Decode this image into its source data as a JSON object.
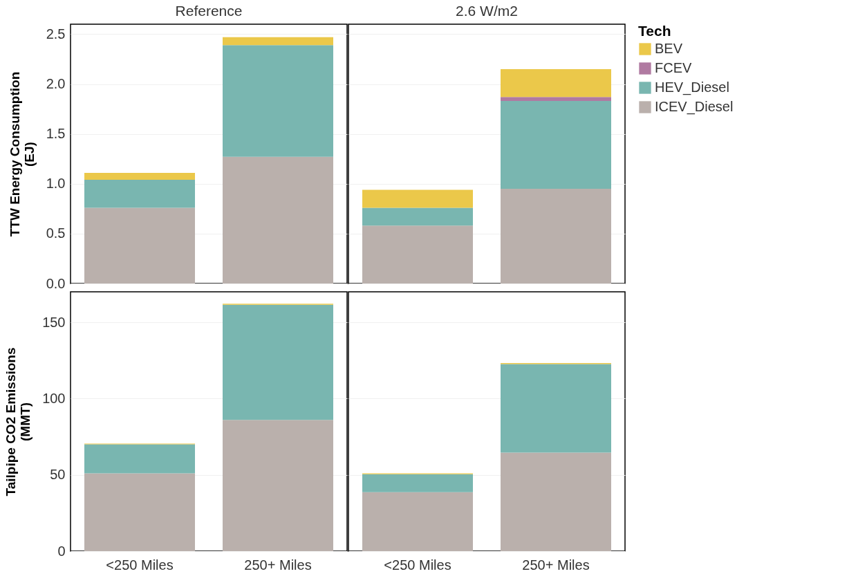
{
  "chart_data": [
    {
      "type": "bar",
      "stacked": true,
      "title": "Reference",
      "ylabel": "TTW Energy Consumption (EJ)",
      "categories": [
        "<250 Miles",
        "250+ Miles"
      ],
      "ylim": [
        0,
        2.6
      ],
      "yticks": [
        {
          "value": 0,
          "label": "0.0"
        },
        0.5,
        {
          "value": 1,
          "label": "1.0"
        },
        1.5,
        {
          "value": 2,
          "label": "2.0"
        },
        2.5
      ],
      "grid": "y",
      "tick_labels": "y",
      "legend": "right",
      "series": [
        {
          "name": "ICEV_Diesel",
          "color": "#bab0ac",
          "values": [
            0.76,
            1.27
          ]
        },
        {
          "name": "HEV_Diesel",
          "color": "#79b6b0",
          "values": [
            0.28,
            1.12
          ]
        },
        {
          "name": "BEV",
          "color": "#ebc84a",
          "values": [
            0.07,
            0.08
          ]
        }
      ]
    },
    {
      "type": "bar",
      "stacked": true,
      "title": "2.6 W/m2",
      "categories": [
        "<250 Miles",
        "250+ Miles"
      ],
      "ylim": [
        0,
        2.6
      ],
      "yticks": [
        0,
        0.5,
        1,
        1.5,
        2,
        2.5
      ],
      "grid": "y",
      "tick_labels": false,
      "legend": "right",
      "legend_title": "Tech",
      "series": [
        {
          "name": "ICEV_Diesel",
          "color": "#bab0ac",
          "values": [
            0.58,
            0.95
          ]
        },
        {
          "name": "HEV_Diesel",
          "color": "#79b6b0",
          "values": [
            0.18,
            0.88
          ]
        },
        {
          "name": "FCEV",
          "color": "#b07aa1",
          "values": [
            0,
            0.04
          ]
        },
        {
          "name": "BEV",
          "color": "#ebc84a",
          "values": [
            0.18,
            0.28
          ]
        }
      ]
    },
    {
      "type": "bar",
      "stacked": true,
      "ylabel": "Tailpipe CO2 Emissions (MMT)",
      "categories": [
        "<250 Miles",
        "250+ Miles"
      ],
      "ylim": [
        0,
        170
      ],
      "yticks": [
        0,
        50,
        100,
        150
      ],
      "grid": "y",
      "legend": "right",
      "series": [
        {
          "name": "ICEV_Diesel",
          "color": "#bab0ac",
          "values": [
            51,
            86
          ]
        },
        {
          "name": "HEV_Diesel",
          "color": "#79b6b0",
          "values": [
            19,
            75.5
          ]
        },
        {
          "name": "BEV",
          "color": "#ebc84a",
          "values": [
            0.5,
            0.7
          ]
        }
      ]
    },
    {
      "type": "bar",
      "stacked": true,
      "categories": [
        "<250 Miles",
        "250+ Miles"
      ],
      "ylim": [
        0,
        170
      ],
      "yticks": [
        0,
        50,
        100,
        150
      ],
      "grid": "y",
      "tick_labels": "x",
      "legend": "right",
      "series": [
        {
          "name": "ICEV_Diesel",
          "color": "#bab0ac",
          "values": [
            38.7,
            64.6
          ]
        },
        {
          "name": "HEV_Diesel",
          "color": "#79b6b0",
          "values": [
            11.7,
            58
          ]
        },
        {
          "name": "BEV",
          "color": "#ebc84a",
          "values": [
            0.6,
            0.7
          ]
        }
      ]
    }
  ]
}
